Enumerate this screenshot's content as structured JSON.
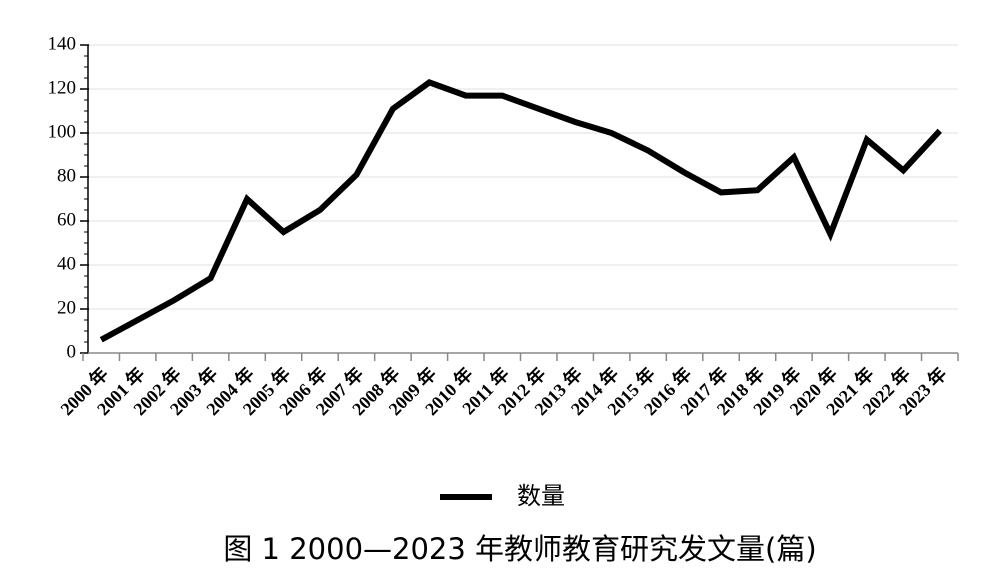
{
  "chart_data": {
    "type": "line",
    "title": "图 1 2000—2023 年教师教育研究发文量(篇)",
    "categories": [
      "2000 年",
      "2001 年",
      "2002 年",
      "2003 年",
      "2004 年",
      "2005 年",
      "2006 年",
      "2007 年",
      "2008 年",
      "2009 年",
      "2010 年",
      "2011 年",
      "2012 年",
      "2013 年",
      "2014 年",
      "2015 年",
      "2016 年",
      "2017 年",
      "2018 年",
      "2019 年",
      "2020 年",
      "2021 年",
      "2022 年",
      "2023 年"
    ],
    "series": [
      {
        "name": "数量",
        "color": "#000000",
        "values": [
          6,
          15,
          24,
          34,
          70,
          55,
          65,
          81,
          111,
          123,
          117,
          117,
          111,
          105,
          100,
          92,
          82,
          73,
          74,
          89,
          54,
          97,
          83,
          101
        ]
      }
    ],
    "ylim": [
      0,
      140
    ],
    "yticks": [
      0,
      20,
      40,
      60,
      80,
      100,
      120,
      140
    ],
    "grid": true,
    "legend": "bottom"
  }
}
